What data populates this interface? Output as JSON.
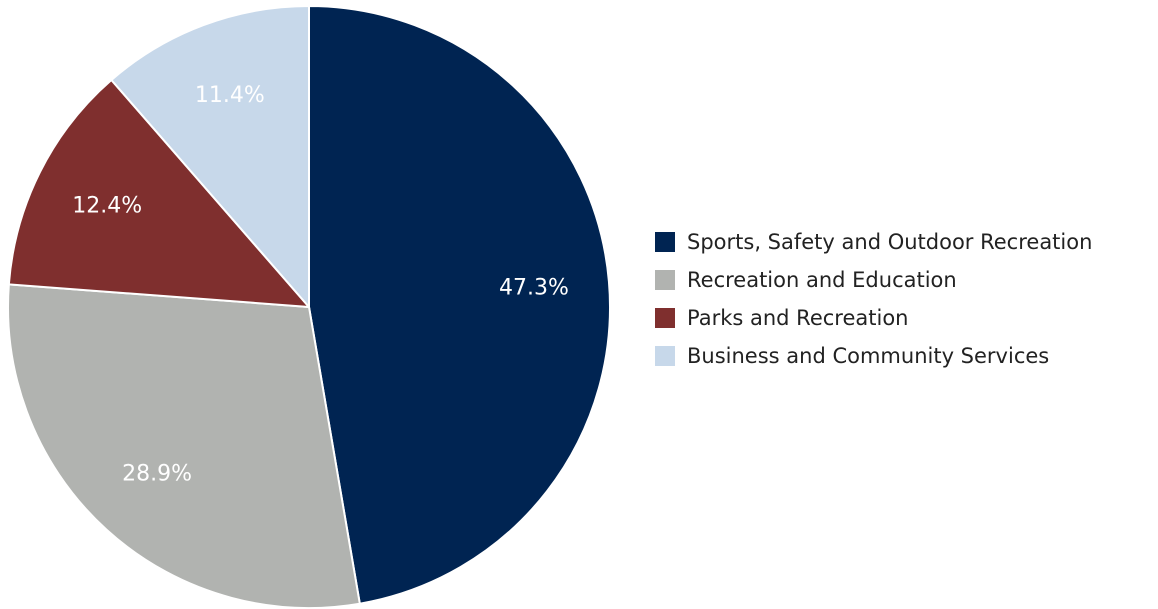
{
  "chart_data": {
    "type": "pie",
    "categories": [
      "Sports, Safety and Outdoor Recreation",
      "Recreation and Education",
      "Parks and Recreation",
      "Business and Community Services"
    ],
    "values": [
      47.3,
      28.9,
      12.4,
      11.4
    ],
    "data_labels": [
      "47.3%",
      "28.9%",
      "12.4%",
      "11.4%"
    ],
    "colors": [
      "#002452",
      "#b1b3b0",
      "#7f2f2e",
      "#c7d8ea"
    ],
    "start_angle": "12 o'clock",
    "direction": "clockwise",
    "legend_position": "right",
    "title": ""
  }
}
